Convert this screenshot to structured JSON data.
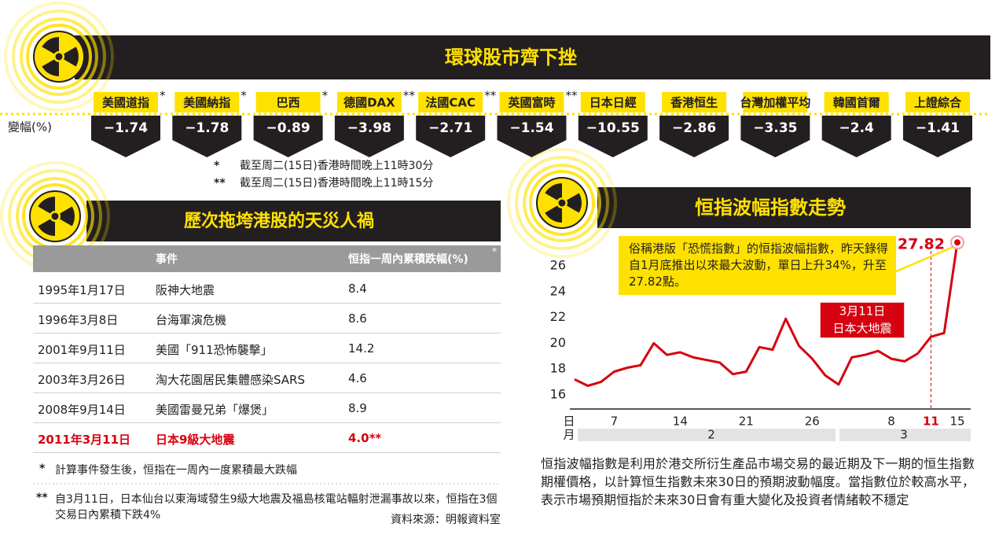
{
  "header": {
    "title": "環球股市齊下挫",
    "row_label": "變幅(%)",
    "indices": [
      {
        "name": "美國道指",
        "note": "*",
        "change": "−1.74"
      },
      {
        "name": "美國納指",
        "note": "*",
        "change": "−1.78"
      },
      {
        "name": "巴西",
        "note": "*",
        "change": "−0.89"
      },
      {
        "name": "德國DAX",
        "note": "**",
        "change": "−3.98"
      },
      {
        "name": "法國CAC",
        "note": "**",
        "change": "−2.71"
      },
      {
        "name": "英國富時",
        "note": "**",
        "change": "−1.54"
      },
      {
        "name": "日本日經",
        "change": "−10.55"
      },
      {
        "name": "香港恒生",
        "change": "−2.86"
      },
      {
        "name": "台灣加權平均",
        "change": "−3.35"
      },
      {
        "name": "韓國首爾",
        "change": "−2.4"
      },
      {
        "name": "上證綜合",
        "change": "−1.41"
      }
    ],
    "notes": [
      [
        "*",
        "截至周二(15日)香港時間晚上11時30分"
      ],
      [
        "**",
        "截至周二(15日)香港時間晚上11時15分"
      ]
    ]
  },
  "table": {
    "title": "歷次拖垮港股的天災人禍",
    "header": [
      "事件",
      "恒指一周內累積跌幅(%)"
    ],
    "header_note": "*",
    "rows": [
      [
        "1995年1月17日",
        "阪神大地震",
        "8.4"
      ],
      [
        "1996年3月8日",
        "台海軍演危機",
        "8.6"
      ],
      [
        "2001年9月11日",
        "美國「911恐怖襲擊」",
        "14.2"
      ],
      [
        "2003年3月26日",
        "淘大花園居民集體感染SARS",
        "4.6"
      ],
      [
        "2008年9月14日",
        "美國雷曼兄弟「爆煲」",
        "8.9"
      ],
      [
        "2011年3月11日",
        "日本9級大地震",
        "4.0**"
      ]
    ],
    "highlight_row": 5,
    "footnotes": [
      [
        "*",
        "計算事件發生後，恒指在一周內一度累積最大跌幅"
      ],
      [
        "**",
        "自3月11日，日本仙台以東海域發生9級大地震及福島核電站輻射泄漏事故以來，恒指在3個交易日內累積下跌4%"
      ]
    ],
    "source": "資料來源：明報資料室"
  },
  "chart_data": {
    "type": "line",
    "title": "恒指波幅指數走勢",
    "annotation": "俗稱港版「恐慌指數」的恒指波幅指數，昨天錄得自1月底推出以來最大波動，單日上升34%，升至27.82點。",
    "event_label": [
      "3月11日",
      "日本大地震"
    ],
    "x_row_labels": [
      "日",
      "月"
    ],
    "month_labels": [
      "2",
      "3"
    ],
    "categories": [
      null,
      null,
      null,
      "7",
      null,
      null,
      null,
      null,
      "14",
      null,
      null,
      null,
      null,
      "21",
      null,
      null,
      null,
      null,
      "26",
      null,
      null,
      null,
      null,
      null,
      "8",
      null,
      null,
      "11",
      null,
      "15"
    ],
    "event_index": 27,
    "series": [
      {
        "name": "恒指波幅指數",
        "color": "#d7000f",
        "values": [
          17.2,
          16.7,
          17.0,
          17.8,
          18.1,
          18.3,
          20.0,
          19.1,
          19.3,
          18.9,
          18.7,
          18.5,
          17.6,
          17.8,
          19.7,
          19.5,
          21.9,
          19.8,
          18.8,
          17.5,
          16.8,
          18.9,
          19.1,
          19.4,
          18.8,
          18.6,
          19.2,
          20.5,
          20.8,
          27.82
        ]
      }
    ],
    "ylim": [
      14.9,
      28.2
    ],
    "yticks": [
      16,
      18,
      20,
      22,
      24,
      26
    ],
    "grid": false,
    "description": "恒指波幅指數是利用於港交所衍生產品市場交易的最近期及下一期的恒生指數期權價格，以計算恒生指數未來30日的預期波動幅度。當指數位於較高水平，表示市場預期恒指於未來30日會有重大變化及投資者情緒較不穩定"
  }
}
